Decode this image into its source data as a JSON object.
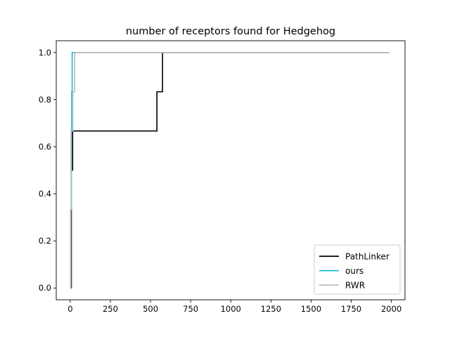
{
  "chart_data": {
    "type": "line",
    "title": "number of receptors found for Hedgehog",
    "xlabel": "",
    "ylabel": "",
    "xlim": [
      -87,
      2085
    ],
    "ylim": [
      -0.05,
      1.05
    ],
    "xticks": [
      0,
      250,
      500,
      750,
      1000,
      1250,
      1500,
      1750,
      2000
    ],
    "yticks": [
      0.0,
      0.2,
      0.4,
      0.6,
      0.8,
      1.0
    ],
    "xtick_labels": [
      "0",
      "250",
      "500",
      "750",
      "1000",
      "1250",
      "1500",
      "1750",
      "2000"
    ],
    "ytick_labels": [
      "0.0",
      "0.2",
      "0.4",
      "0.6",
      "0.8",
      "1.0"
    ],
    "grid": false,
    "legend": "lower right",
    "series": [
      {
        "name": "PathLinker",
        "color": "#000000",
        "x": [
          0,
          7,
          7,
          15,
          15,
          22,
          22,
          540,
          540,
          575,
          575,
          1985
        ],
        "y": [
          0.0,
          0.0,
          0.5,
          0.5,
          0.6667,
          0.6667,
          0.6667,
          0.6667,
          0.8333,
          0.8333,
          1.0,
          1.0
        ]
      },
      {
        "name": "ours",
        "color": "#17becf",
        "x": [
          0,
          3,
          3,
          6,
          6,
          9,
          9,
          12,
          12,
          16,
          16,
          1985
        ],
        "y": [
          0.0,
          0.0,
          0.3333,
          0.3333,
          0.6667,
          0.6667,
          0.8333,
          0.8333,
          1.0,
          1.0,
          1.0,
          1.0
        ]
      },
      {
        "name": "RWR",
        "color": "#bbbbbb",
        "x": [
          0,
          3,
          3,
          8,
          8,
          16,
          16,
          28,
          28,
          1985
        ],
        "y": [
          0.0,
          0.0,
          0.3333,
          0.3333,
          0.6667,
          0.6667,
          0.8333,
          0.8333,
          1.0,
          1.0
        ]
      }
    ]
  }
}
